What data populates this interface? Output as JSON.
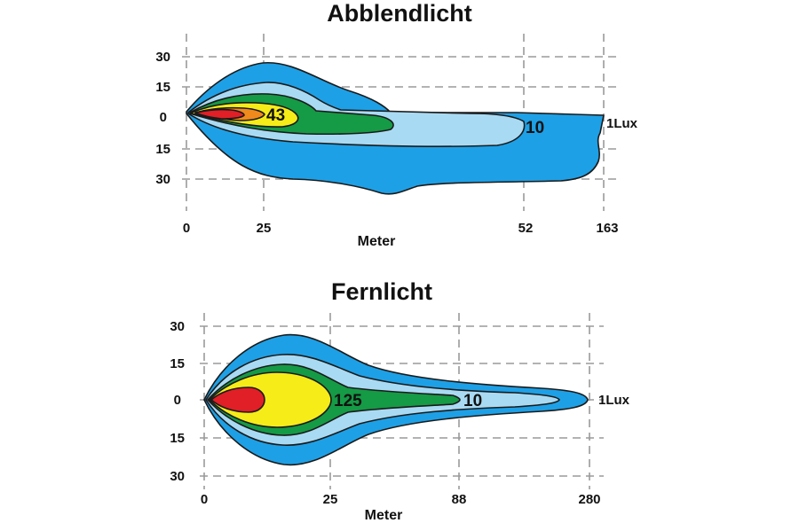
{
  "diagrams": [
    {
      "title": "Abblendlicht",
      "y_ticks": [
        "30",
        "15",
        "0",
        "15",
        "30"
      ],
      "x_ticks": [
        "0",
        "25",
        "52",
        "163"
      ],
      "xlabel": "Meter",
      "isolux_labels": [
        "43",
        "10",
        "1Lux"
      ],
      "colors": {
        "outer": "#1ea0e6",
        "light_blue": "#a9daf3",
        "green": "#159a45",
        "yellow": "#f6ec18",
        "orange": "#f08a1c",
        "red": "#e01f26"
      }
    },
    {
      "title": "Fernlicht",
      "y_ticks": [
        "30",
        "15",
        "0",
        "15",
        "30"
      ],
      "x_ticks": [
        "0",
        "25",
        "88",
        "280"
      ],
      "xlabel": "Meter",
      "isolux_labels": [
        "125",
        "10",
        "1Lux"
      ],
      "colors": {
        "outer": "#1ea0e6",
        "light_blue": "#a9daf3",
        "green": "#159a45",
        "yellow": "#f6ec18",
        "red": "#e01f26"
      }
    }
  ]
}
